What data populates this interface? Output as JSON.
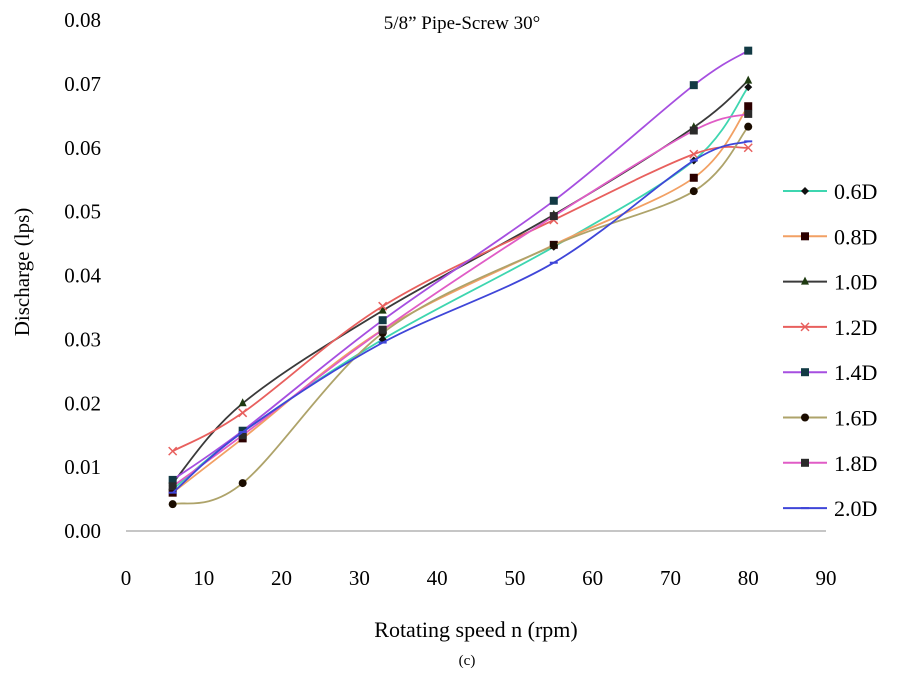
{
  "caption": "(c)",
  "chart_data": {
    "type": "line",
    "title": "5/8” Pipe-Screw 30°",
    "xlabel": "Rotating speed  n (rpm)",
    "ylabel": "Discharge (lps)",
    "xlim": [
      0,
      90
    ],
    "ylim": [
      0,
      0.08
    ],
    "xticks": [
      "0",
      "10",
      "20",
      "30",
      "40",
      "50",
      "60",
      "70",
      "80",
      "90"
    ],
    "yticks": [
      "0.00",
      "0.01",
      "0.02",
      "0.03",
      "0.04",
      "0.05",
      "0.06",
      "0.07",
      "0.08"
    ],
    "grid": false,
    "legend_position": "right",
    "x": [
      6,
      15,
      33,
      55,
      73,
      80
    ],
    "series": [
      {
        "name": "0.6D",
        "color": "#3ED6B0",
        "marker": "diamond",
        "values": [
          0.0065,
          0.0155,
          0.03,
          0.0445,
          0.058,
          0.0695
        ]
      },
      {
        "name": "0.8D",
        "color": "#F2A064",
        "marker": "square",
        "values": [
          0.006,
          0.0145,
          0.0315,
          0.0448,
          0.0553,
          0.0665
        ]
      },
      {
        "name": "1.0D",
        "color": "#3A3A3A",
        "marker": "triangle",
        "values": [
          0.0075,
          0.02,
          0.0345,
          0.0495,
          0.0632,
          0.0705
        ]
      },
      {
        "name": "1.2D",
        "color": "#E8605E",
        "marker": "x",
        "values": [
          0.0125,
          0.0185,
          0.0352,
          0.0487,
          0.059,
          0.06
        ]
      },
      {
        "name": "1.4D",
        "color": "#A64FE0",
        "marker": "square-dot",
        "values": [
          0.008,
          0.0157,
          0.033,
          0.0517,
          0.0698,
          0.0752
        ]
      },
      {
        "name": "1.6D",
        "color": "#AEA36A",
        "marker": "circle",
        "values": [
          0.0042,
          0.0075,
          0.031,
          0.0447,
          0.0532,
          0.0633
        ]
      },
      {
        "name": "1.8D",
        "color": "#E05CC6",
        "marker": "square-plus",
        "values": [
          0.007,
          0.015,
          0.0315,
          0.0493,
          0.0627,
          0.0653
        ]
      },
      {
        "name": "2.0D",
        "color": "#3F46D8",
        "marker": "dash",
        "values": [
          0.006,
          0.0155,
          0.0295,
          0.042,
          0.058,
          0.061
        ]
      }
    ]
  }
}
